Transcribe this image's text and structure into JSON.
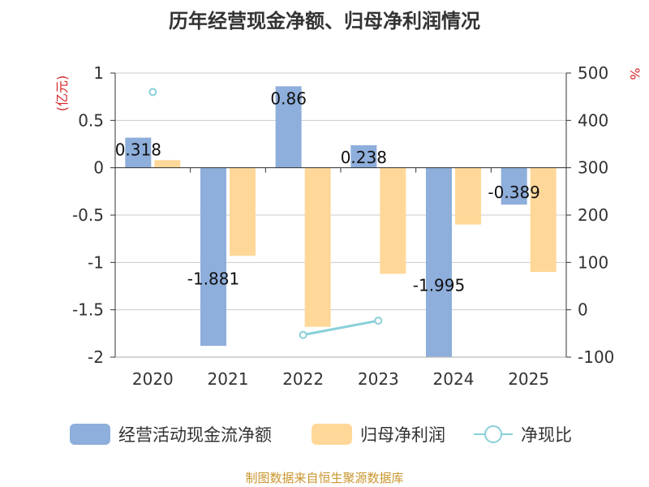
{
  "title": "历年经营现金净额、归母净利润情况",
  "source": "制图数据来自恒生聚源数据库",
  "chart_data": {
    "type": "bar",
    "categories": [
      "2020",
      "2021",
      "2022",
      "2023",
      "2024",
      "2025"
    ],
    "series": [
      {
        "name": "经营活动现金流净额",
        "values": [
          0.318,
          -1.881,
          0.86,
          0.238,
          -1.995,
          -0.389
        ],
        "labels": [
          "0.318",
          "-1.881",
          "0.86",
          "0.238",
          "-1.995",
          "-0.389"
        ],
        "color": "#8eaedb",
        "axis": "left"
      },
      {
        "name": "归母净利润",
        "values": [
          0.08,
          -0.93,
          -1.68,
          -1.12,
          -0.6,
          -1.1
        ],
        "color": "#ffd899",
        "axis": "left"
      },
      {
        "name": "净现比",
        "type": "line",
        "values": [
          460,
          null,
          -53,
          -23,
          null,
          null
        ],
        "color": "#88d0d8",
        "axis": "right"
      }
    ],
    "y_left": {
      "label": "(亿元)",
      "ylim": [
        -2,
        1
      ],
      "ticks": [
        "1",
        "0.5",
        "0",
        "-0.5",
        "-1",
        "-1.5",
        "-2"
      ]
    },
    "y_right": {
      "label": "%",
      "ylim": [
        -100,
        500
      ],
      "ticks": [
        "500",
        "400",
        "300",
        "200",
        "100",
        "0",
        "-100"
      ]
    },
    "legend_position": "bottom"
  }
}
